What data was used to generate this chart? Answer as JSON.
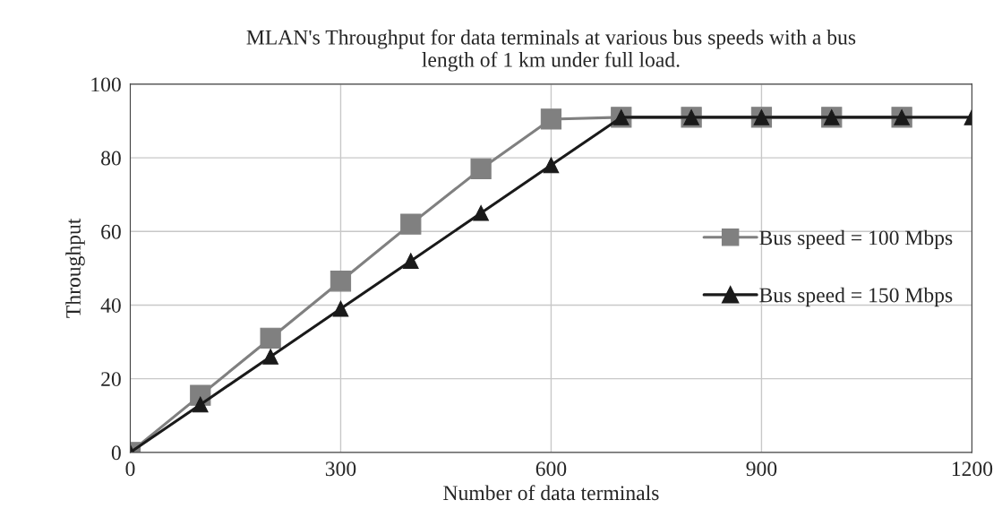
{
  "chart_data": {
    "type": "line",
    "title": "MLAN's Throughput for data terminals at various bus speeds with a bus\nlength of 1 km under full load.",
    "xlabel": "Number of data terminals",
    "ylabel": "Throughput",
    "series": [
      {
        "name": "Bus speed = 100 Mbps",
        "color": "#808080",
        "marker": "square",
        "x": [
          0,
          100,
          200,
          300,
          400,
          500,
          600,
          700,
          800,
          900,
          1000,
          1100
        ],
        "values": [
          0,
          15.5,
          31,
          46.5,
          62,
          77,
          90.5,
          91,
          91,
          91,
          91,
          91
        ]
      },
      {
        "name": "Bus speed = 150 Mbps",
        "color": "#1a1a1a",
        "marker": "triangle",
        "x": [
          0,
          100,
          200,
          300,
          400,
          500,
          600,
          700,
          800,
          900,
          1000,
          1100,
          1200
        ],
        "values": [
          0,
          13,
          26,
          39,
          52,
          65,
          78,
          91,
          91,
          91,
          91,
          91,
          91
        ]
      }
    ],
    "xlim": [
      0,
      1200
    ],
    "xticks": [
      0,
      300,
      600,
      900,
      1200
    ],
    "ylim": [
      0,
      100
    ],
    "yticks": [
      0,
      20,
      40,
      60,
      80,
      100
    ],
    "grid": true,
    "legend": "right"
  }
}
